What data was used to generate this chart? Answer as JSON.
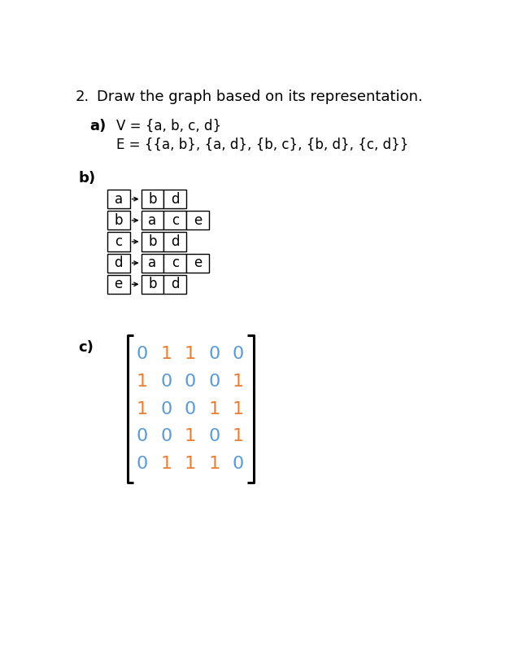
{
  "title_num": "2.",
  "title_text": "Draw the graph based on its representation.",
  "part_a_label": "a)",
  "part_a_line1": "V = {a, b, c, d}",
  "part_a_line2": "E = {{a, b}, {a, d}, {b, c}, {b, d}, {c, d}}",
  "part_b_label": "b)",
  "part_b_nodes": [
    "a",
    "b",
    "c",
    "d",
    "e"
  ],
  "part_b_adjacency": [
    [
      "b",
      "d"
    ],
    [
      "a",
      "c",
      "e"
    ],
    [
      "b",
      "d"
    ],
    [
      "a",
      "c",
      "e"
    ],
    [
      "b",
      "d"
    ]
  ],
  "part_c_label": "c)",
  "matrix": [
    [
      0,
      1,
      1,
      0,
      0
    ],
    [
      1,
      0,
      0,
      0,
      1
    ],
    [
      1,
      0,
      0,
      1,
      1
    ],
    [
      0,
      0,
      1,
      0,
      1
    ],
    [
      0,
      1,
      1,
      1,
      0
    ]
  ],
  "matrix_color_0": "#5b9bd5",
  "matrix_color_1": "#ed7d31",
  "bg_color": "#ffffff",
  "text_color": "#000000",
  "font_size_title": 13,
  "font_size_label": 13,
  "font_size_body": 12,
  "font_size_matrix": 16,
  "font_size_box": 12
}
